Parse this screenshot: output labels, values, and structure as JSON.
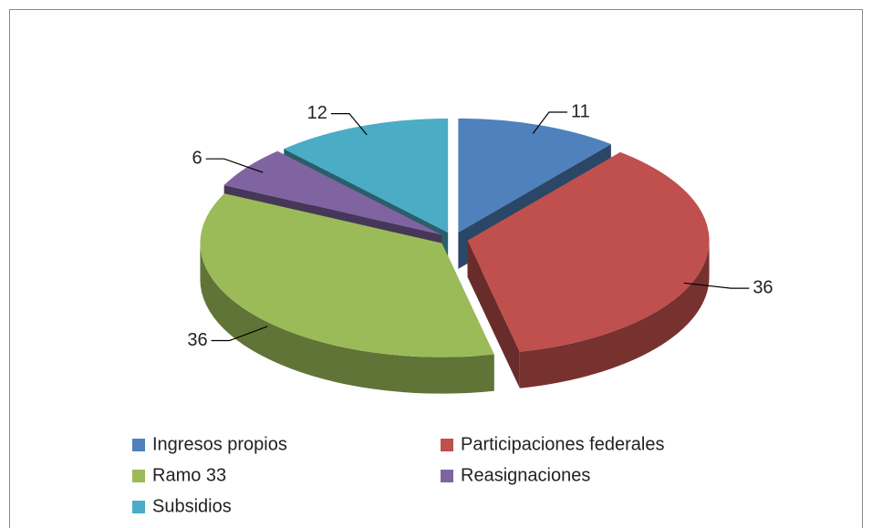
{
  "chart_data": {
    "type": "pie",
    "categories": [
      "Ingresos propios",
      "Participaciones federales",
      "Ramo 33",
      "Reasignaciones",
      "Subsidios"
    ],
    "values": [
      11,
      36,
      36,
      6,
      12
    ],
    "colors": [
      "#4f81bd",
      "#c0504d",
      "#9bbb59",
      "#8064a2",
      "#4bacc6"
    ],
    "legend": "bottom"
  }
}
